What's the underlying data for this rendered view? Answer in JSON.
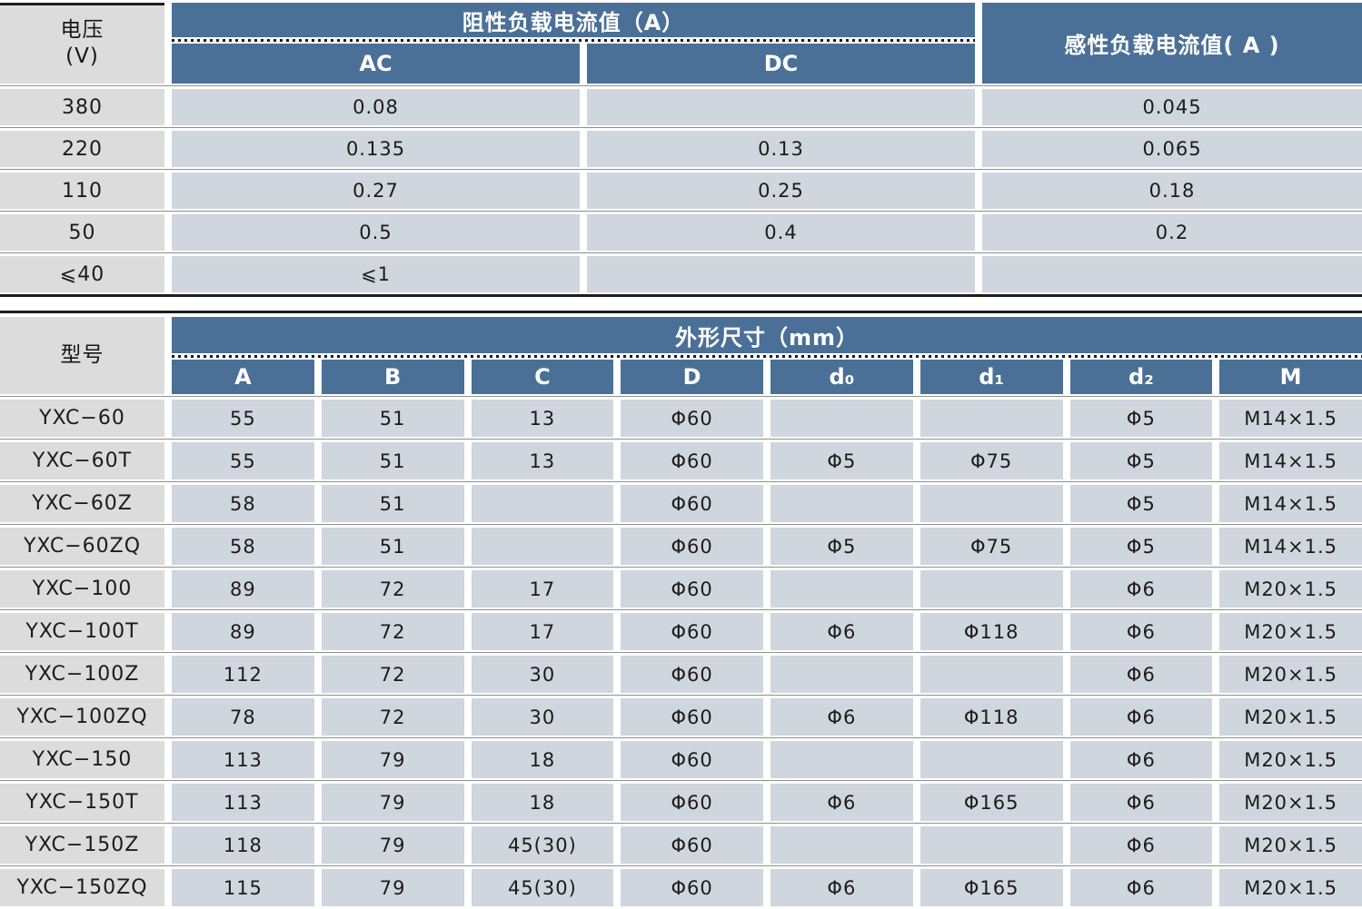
{
  "colors": {
    "header_blue": "#4b7097",
    "data_cell_blue_gray": "#cfd6de",
    "side_cell_gray": "#dcdcdc",
    "row_separator": "#8f8f8f",
    "rule_black": "#1d1d1d"
  },
  "current_table": {
    "corner_header_line1": "电压",
    "corner_header_line2": "(V)",
    "group_header": "阻性负载电流值（A）",
    "sub_headers": [
      "AC",
      "DC"
    ],
    "inductive_header": "感性负载电流值( A )",
    "rows": [
      {
        "voltage": "380",
        "ac": "0.08",
        "dc": "",
        "inductive": "0.045"
      },
      {
        "voltage": "220",
        "ac": "0.135",
        "dc": "0.13",
        "inductive": "0.065"
      },
      {
        "voltage": "110",
        "ac": "0.27",
        "dc": "0.25",
        "inductive": "0.18"
      },
      {
        "voltage": "50",
        "ac": "0.5",
        "dc": "0.4",
        "inductive": "0.2"
      },
      {
        "voltage": "⩽40",
        "ac": "⩽1",
        "dc": "",
        "inductive": ""
      }
    ]
  },
  "dimensions_table": {
    "corner_header": "型号",
    "group_header": "外形尺寸（mm）",
    "sub_headers": [
      "A",
      "B",
      "C",
      "D",
      "d₀",
      "d₁",
      "d₂",
      "M"
    ],
    "rows": [
      {
        "model": "YXC−60",
        "values": [
          "55",
          "51",
          "13",
          "Φ60",
          "",
          "",
          "Φ5",
          "M14×1.5"
        ]
      },
      {
        "model": "YXC−60T",
        "values": [
          "55",
          "51",
          "13",
          "Φ60",
          "Φ5",
          "Φ75",
          "Φ5",
          "M14×1.5"
        ]
      },
      {
        "model": "YXC−60Z",
        "values": [
          "58",
          "51",
          "",
          "Φ60",
          "",
          "",
          "Φ5",
          "M14×1.5"
        ]
      },
      {
        "model": "YXC−60ZQ",
        "values": [
          "58",
          "51",
          "",
          "Φ60",
          "Φ5",
          "Φ75",
          "Φ5",
          "M14×1.5"
        ]
      },
      {
        "model": "YXC−100",
        "values": [
          "89",
          "72",
          "17",
          "Φ60",
          "",
          "",
          "Φ6",
          "M20×1.5"
        ]
      },
      {
        "model": "YXC−100T",
        "values": [
          "89",
          "72",
          "17",
          "Φ60",
          "Φ6",
          "Φ118",
          "Φ6",
          "M20×1.5"
        ]
      },
      {
        "model": "YXC−100Z",
        "values": [
          "112",
          "72",
          "30",
          "Φ60",
          "",
          "",
          "Φ6",
          "M20×1.5"
        ]
      },
      {
        "model": "YXC−100ZQ",
        "values": [
          "78",
          "72",
          "30",
          "Φ60",
          "Φ6",
          "Φ118",
          "Φ6",
          "M20×1.5"
        ]
      },
      {
        "model": "YXC−150",
        "values": [
          "113",
          "79",
          "18",
          "Φ60",
          "",
          "",
          "Φ6",
          "M20×1.5"
        ]
      },
      {
        "model": "YXC−150T",
        "values": [
          "113",
          "79",
          "18",
          "Φ60",
          "Φ6",
          "Φ165",
          "Φ6",
          "M20×1.5"
        ]
      },
      {
        "model": "YXC−150Z",
        "values": [
          "118",
          "79",
          "45(30)",
          "Φ60",
          "",
          "",
          "Φ6",
          "M20×1.5"
        ]
      },
      {
        "model": "YXC−150ZQ",
        "values": [
          "115",
          "79",
          "45(30)",
          "Φ60",
          "Φ6",
          "Φ165",
          "Φ6",
          "M20×1.5"
        ]
      }
    ]
  }
}
